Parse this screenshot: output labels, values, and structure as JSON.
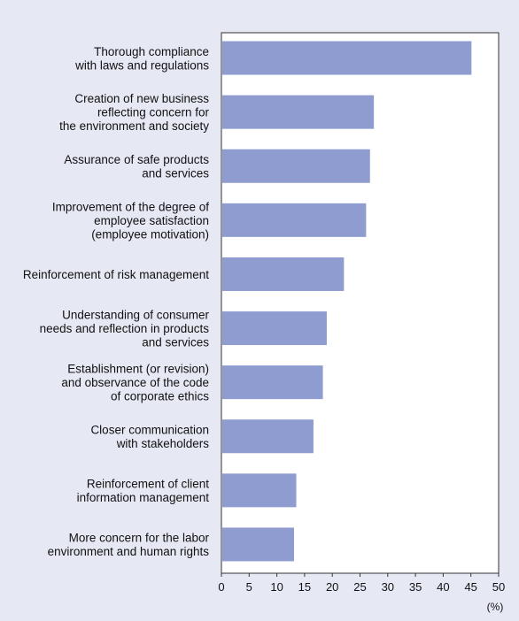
{
  "chart_data": {
    "type": "bar",
    "orientation": "horizontal",
    "categories": [
      [
        "Thorough compliance",
        "with laws and regulations"
      ],
      [
        "Creation of new business",
        "reflecting concern for",
        "the environment and society"
      ],
      [
        "Assurance of safe products",
        "and services"
      ],
      [
        "Improvement of the degree of",
        "employee satisfaction",
        "(employee motivation)"
      ],
      [
        "Reinforcement of risk management"
      ],
      [
        "Understanding of consumer",
        "needs and reflection in products",
        "and services"
      ],
      [
        "Establishment (or revision)",
        "and observance of the code",
        "of corporate ethics"
      ],
      [
        "Closer communication",
        "with stakeholders"
      ],
      [
        "Reinforcement of client",
        "information management"
      ],
      [
        "More concern for the labor",
        "environment and human rights"
      ]
    ],
    "values": [
      45.1,
      27.5,
      26.8,
      26.1,
      22.1,
      19.0,
      18.3,
      16.6,
      13.5,
      13.1
    ],
    "xlim": [
      0,
      50
    ],
    "xticks": [
      "0",
      "5",
      "10",
      "15",
      "20",
      "25",
      "30",
      "35",
      "40",
      "45",
      "50"
    ],
    "xunit": "(%)",
    "bar_color": "#8e9cd0",
    "background": "#e6e8f4",
    "plot_background": "#ffffff",
    "grid": false
  }
}
